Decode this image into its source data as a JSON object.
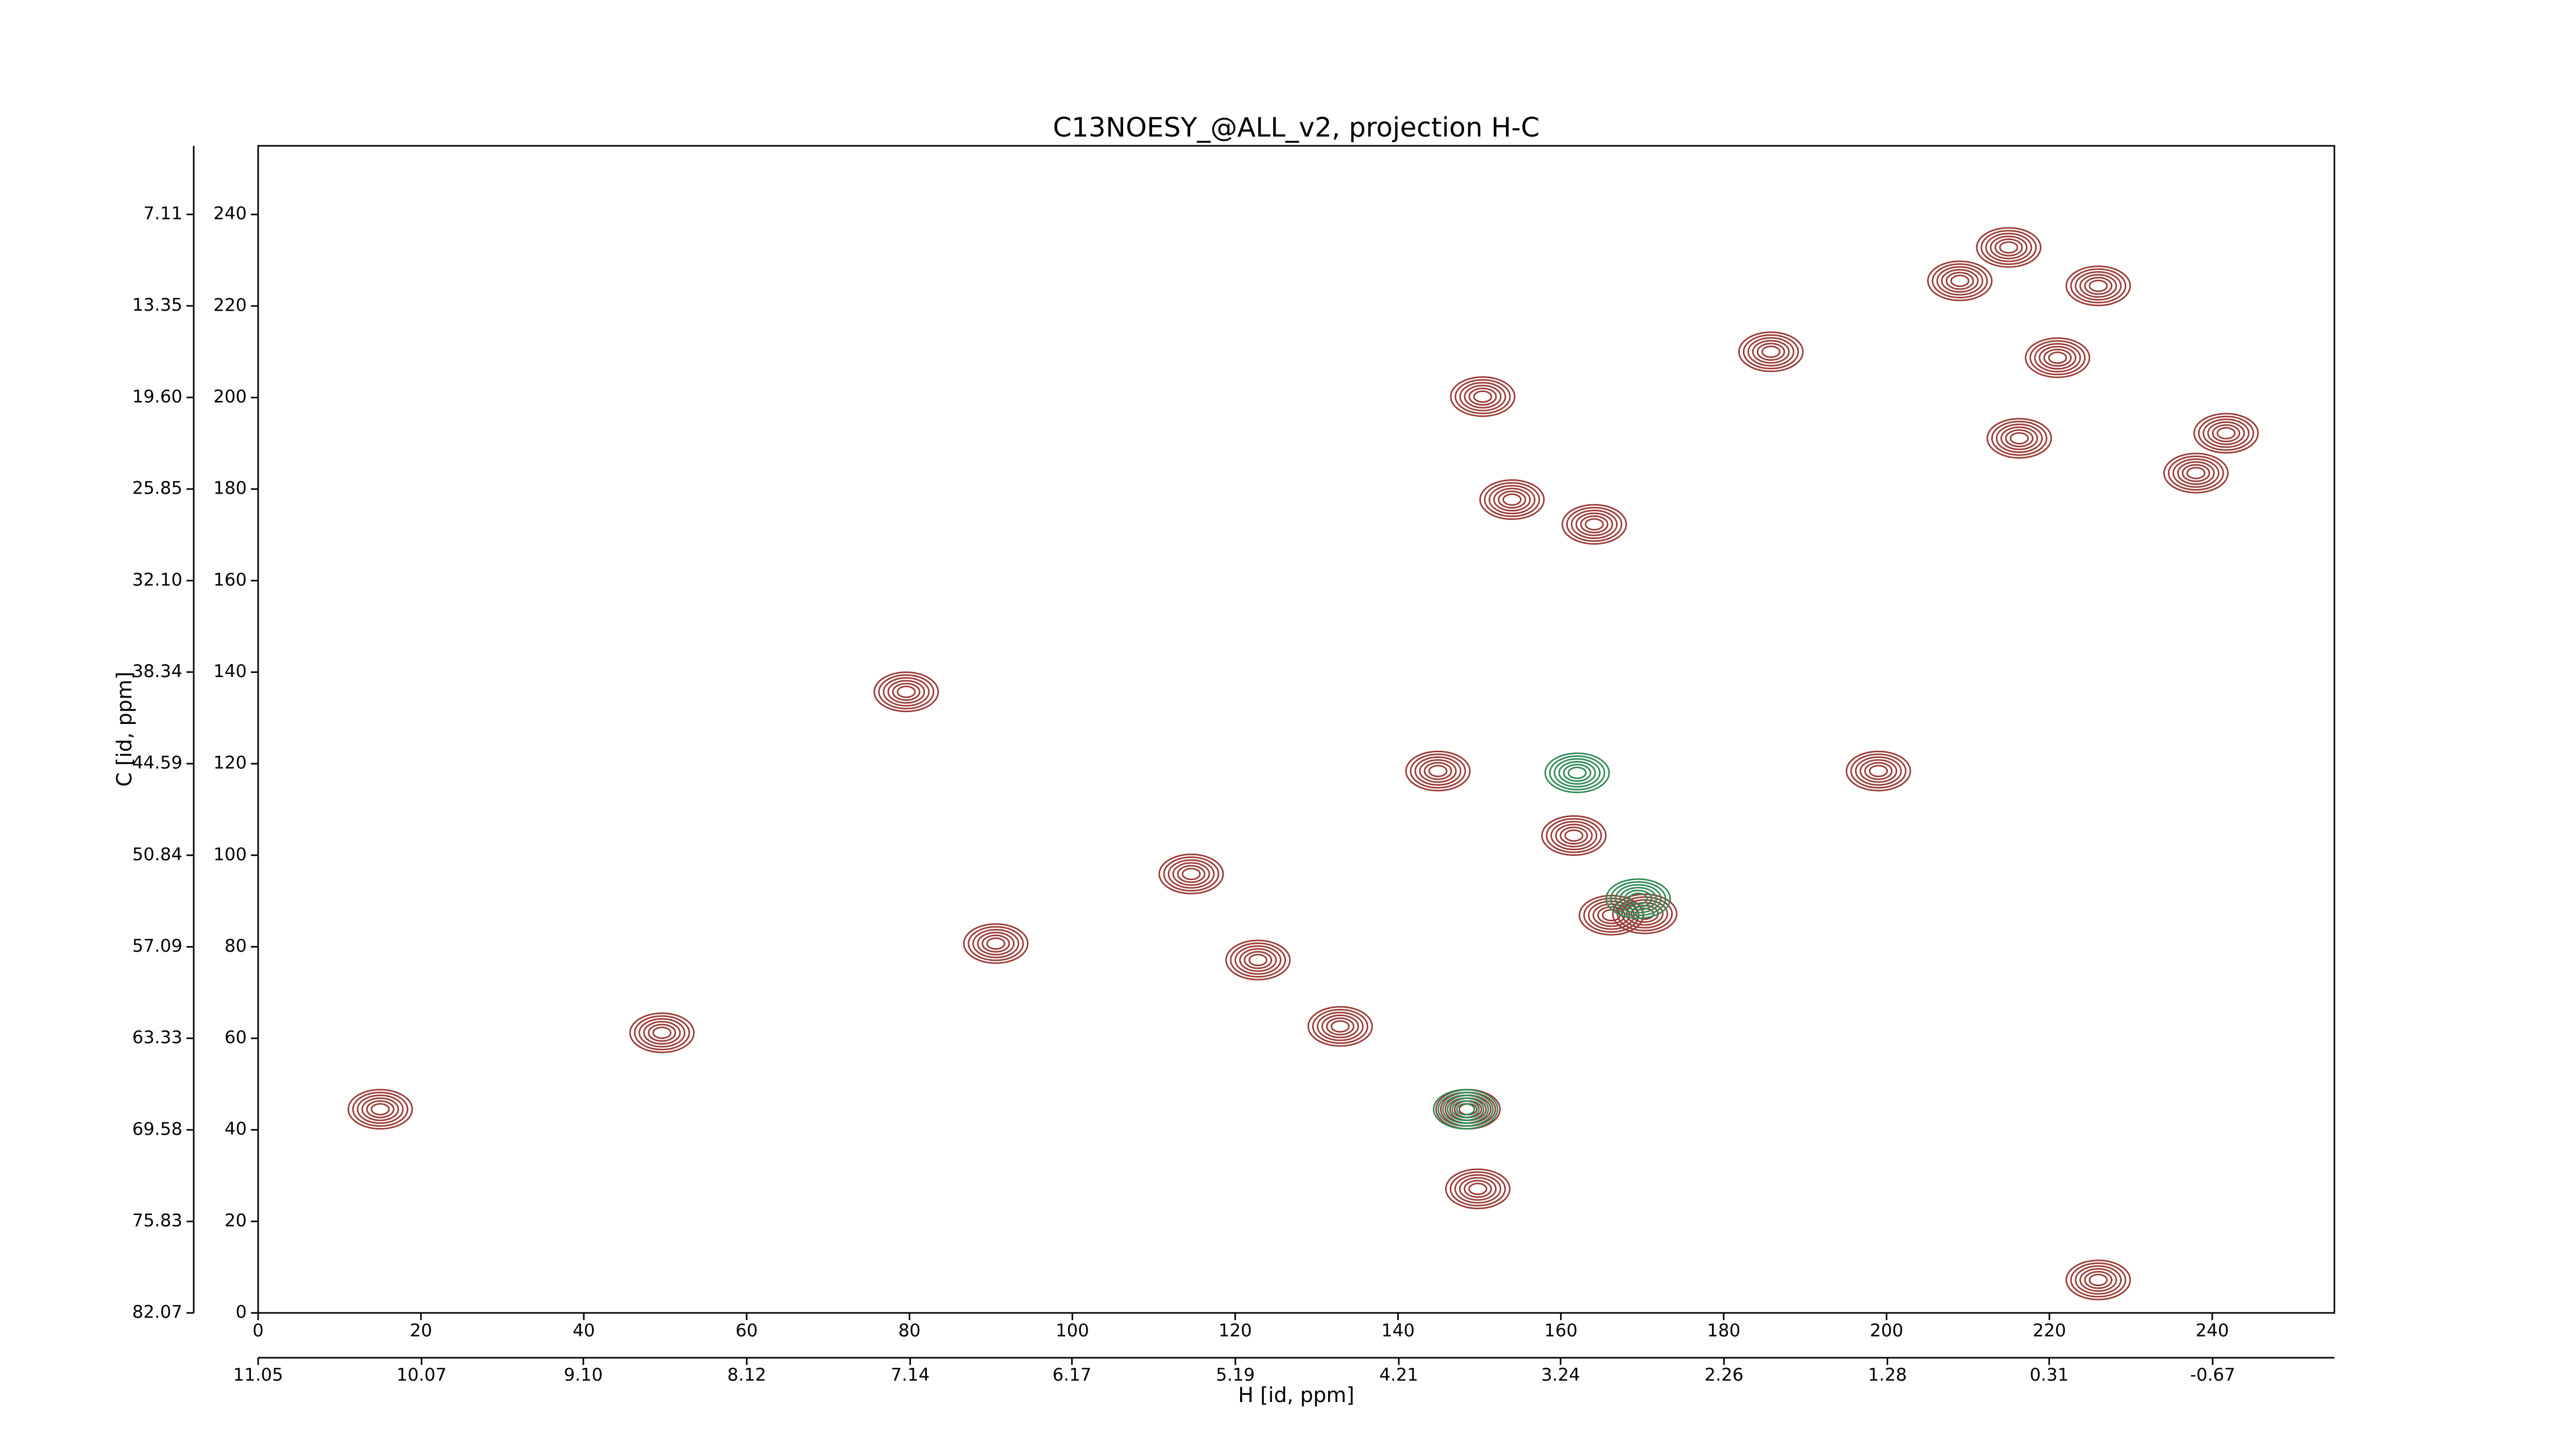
{
  "chart_data": {
    "type": "contour",
    "title": "C13NOESY_@ALL_v2, projection H-C",
    "xlabel": "H [id, ppm]",
    "ylabel": "C [id, ppm]",
    "xlim": [
      0,
      255
    ],
    "ylim": [
      0,
      255
    ],
    "xticks": [
      0,
      20,
      40,
      60,
      80,
      100,
      120,
      140,
      160,
      180,
      200,
      220,
      240
    ],
    "yticks": [
      0,
      20,
      40,
      60,
      80,
      100,
      120,
      140,
      160,
      180,
      200,
      220,
      240
    ],
    "x2lim": [
      11.05,
      -1.4
    ],
    "x2ticks": [
      11.05,
      10.07,
      {
        "value": 9.1,
        "label": "9.10"
      },
      8.12,
      7.14,
      6.17,
      5.19,
      4.21,
      3.24,
      2.26,
      1.28,
      0.31,
      -0.67
    ],
    "y2lim": [
      82.07,
      2.43
    ],
    "y2ticks": [
      82.07,
      75.83,
      69.58,
      63.33,
      57.09,
      50.84,
      44.59,
      38.34,
      {
        "value": 32.1,
        "label": "32.10"
      },
      25.85,
      {
        "value": 19.6,
        "label": "19.60"
      },
      13.35,
      7.11
    ],
    "series": [
      {
        "color": "#9c3a35",
        "x": [
          226,
          185.8,
          221,
          154,
          238,
          164.1,
          79.6,
          144.9,
          199,
          161.6,
          166.2,
          170.3,
          114.6,
          148.6,
          149.8,
          226,
          215,
          209,
          90.6,
          49.6,
          15,
          150.4,
          241.7,
          216.3,
          122.8,
          132.9
        ],
        "y": [
          224.4,
          210,
          208.7,
          177.7,
          183.5,
          172.3,
          135.7,
          118.4,
          118.4,
          104.3,
          86.9,
          87.2,
          95.9,
          44.5,
          27.1,
          7.2,
          232.8,
          225.5,
          80.7,
          61.2,
          44.5,
          200.2,
          192.2,
          191.1,
          77.1,
          62.6
        ]
      },
      {
        "color": "#2e8b57",
        "x": [
          162,
          148.3,
          169.5
        ],
        "y": [
          118,
          44.5,
          90.5
        ]
      }
    ]
  }
}
